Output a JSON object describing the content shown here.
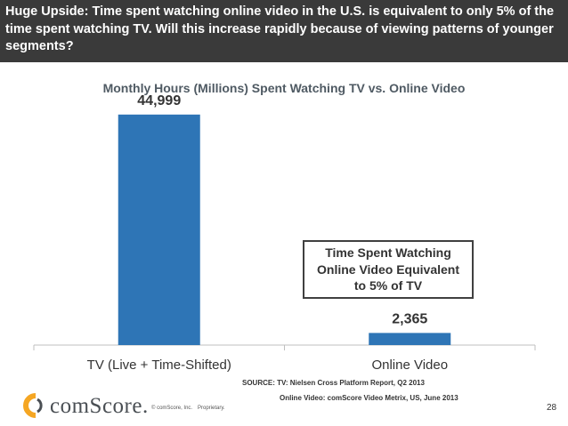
{
  "header": {
    "text": "Huge Upside:  Time spent watching online video in the U.S. is equivalent to only 5% of the time spent watching TV. Will this increase rapidly because of viewing patterns of younger segments?"
  },
  "chart_data": {
    "type": "bar",
    "title": "Monthly Hours (Millions) Spent Watching TV vs. Online Video",
    "categories": [
      "TV (Live + Time-Shifted)",
      "Online Video"
    ],
    "values": [
      44999,
      2365
    ],
    "value_labels": [
      "44,999",
      "2,365"
    ],
    "bar_color": "#2e75b6",
    "grid": false,
    "ylim": [
      0,
      50000
    ]
  },
  "callout": {
    "lines": [
      "Time Spent Watching",
      "Online Video Equivalent",
      "to 5% of TV"
    ]
  },
  "source": {
    "line1": "SOURCE: TV: Nielsen Cross Platform Report, Q2 2013",
    "line2": "Online Video: comScore Video Metrix, US, June 2013"
  },
  "footer": {
    "logo_text": "comScore.",
    "copyright": "© comScore, Inc.",
    "proprietary": "Proprietary.",
    "page_number": "28"
  }
}
